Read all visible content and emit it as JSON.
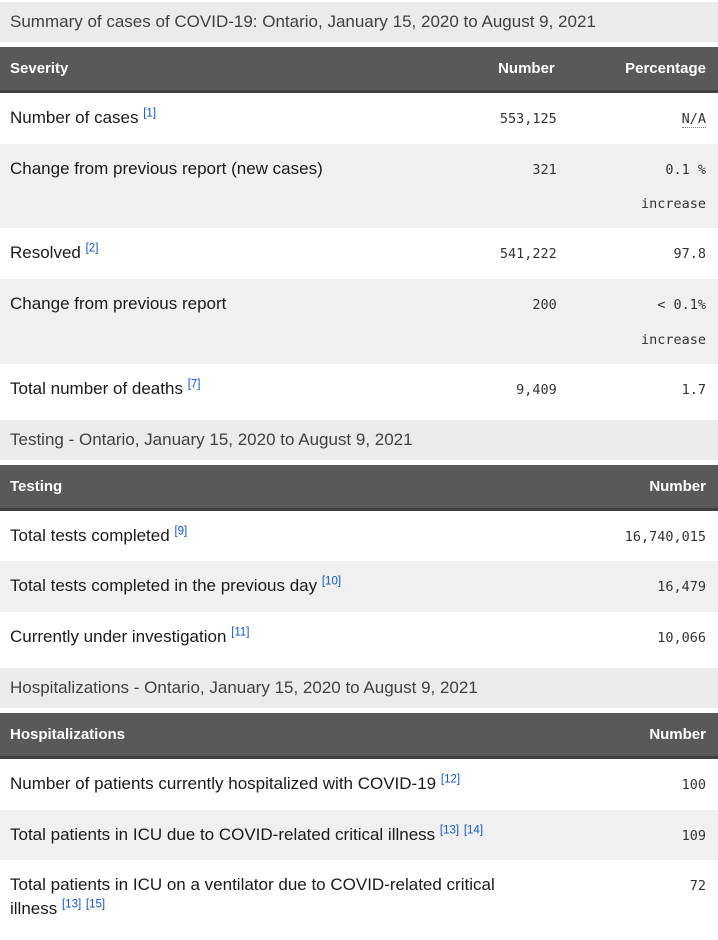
{
  "colors": {
    "header-bg": "#595959",
    "header-border": "#404040",
    "caption-bg": "#ebebeb",
    "caption-fg": "#414042",
    "row-alt": "#f0f0f0",
    "text": "#1a1a1a",
    "link": "#1155cc"
  },
  "tables": [
    {
      "caption": "Summary of cases of COVID-19: Ontario, January 15, 2020 to August 9, 2021",
      "columns": [
        "Severity",
        "Number",
        "Percentage"
      ],
      "rows": [
        {
          "label": "Number of cases",
          "footnotes": [
            "[1]"
          ],
          "number": "553,125",
          "percentage": "N/A",
          "percentage_note": "",
          "not_applicable": true
        },
        {
          "label": "Change from previous report (new cases)",
          "footnotes": [],
          "number": "321",
          "percentage": "0.1 %",
          "percentage_note": "increase",
          "not_applicable": false
        },
        {
          "label": "Resolved",
          "footnotes": [
            "[2]"
          ],
          "number": "541,222",
          "percentage": "97.8",
          "percentage_note": "",
          "not_applicable": false
        },
        {
          "label": "Change from previous report",
          "footnotes": [],
          "number": "200",
          "percentage": "< 0.1%",
          "percentage_note": "increase",
          "not_applicable": false
        },
        {
          "label": "Total number of deaths",
          "footnotes": [
            "[7]"
          ],
          "number": "9,409",
          "percentage": "1.7",
          "percentage_note": "",
          "not_applicable": false
        }
      ]
    },
    {
      "caption": "Testing - Ontario, January 15, 2020 to August 9, 2021",
      "columns": [
        "Testing",
        "Number"
      ],
      "rows": [
        {
          "label": "Total tests completed",
          "footnotes": [
            "[9]"
          ],
          "number": "16,740,015"
        },
        {
          "label": "Total tests completed in the previous day",
          "footnotes": [
            "[10]"
          ],
          "number": "16,479"
        },
        {
          "label": "Currently under investigation",
          "footnotes": [
            "[11]"
          ],
          "number": "10,066"
        }
      ]
    },
    {
      "caption": "Hospitalizations - Ontario, January 15, 2020 to August 9, 2021",
      "columns": [
        "Hospitalizations",
        "Number"
      ],
      "rows": [
        {
          "label": "Number of patients currently hospitalized with COVID-19",
          "footnotes": [
            "[12]"
          ],
          "number": "100"
        },
        {
          "label": "Total patients in ICU due to COVID-related critical illness",
          "footnotes": [
            "[13]",
            "[14]"
          ],
          "number": "109"
        },
        {
          "label": "Total patients in ICU on a ventilator due to COVID-related critical illness",
          "footnotes": [
            "[13]",
            "[15]"
          ],
          "number": "72"
        }
      ]
    }
  ]
}
